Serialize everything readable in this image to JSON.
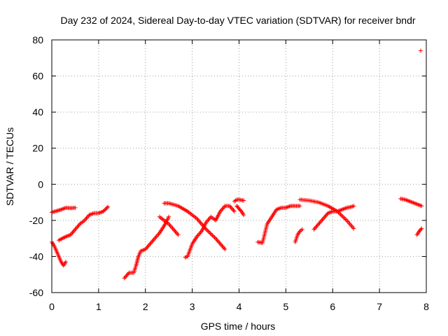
{
  "chart_data": {
    "type": "scatter",
    "title": "Day 232 of 2024, Sidereal Day-to-day VTEC variation (SDTVAR) for receiver bndr",
    "xlabel": "GPS time / hours",
    "ylabel": "SDTVAR / TECUs",
    "xlim": [
      0,
      8
    ],
    "ylim": [
      -60,
      80
    ],
    "x_ticks": [
      "0",
      "1",
      "2",
      "3",
      "4",
      "5",
      "6",
      "7",
      "8"
    ],
    "y_ticks": [
      "-60",
      "-40",
      "-20",
      "0",
      "20",
      "40",
      "60",
      "80"
    ],
    "grid": true,
    "marker": "+",
    "color": "#ff0000",
    "series": [
      {
        "name": "arc-1",
        "x": [
          0.0,
          0.1,
          0.2,
          0.3,
          0.4,
          0.5
        ],
        "y": [
          -15.5,
          -14.8,
          -14,
          -13,
          -13.2,
          -13
        ]
      },
      {
        "name": "arc-2",
        "x": [
          0.0,
          0.05,
          0.1,
          0.15,
          0.2,
          0.25,
          0.3
        ],
        "y": [
          -32,
          -34,
          -37,
          -40,
          -43,
          -45,
          -43
        ]
      },
      {
        "name": "arc-3",
        "x": [
          0.15,
          0.3,
          0.4,
          0.5,
          0.6,
          0.7,
          0.8,
          0.9,
          1.0,
          1.1,
          1.2
        ],
        "y": [
          -31,
          -29,
          -28,
          -25,
          -22,
          -20,
          -17,
          -16,
          -16,
          -15,
          -12.5
        ]
      },
      {
        "name": "arc-4",
        "x": [
          1.55,
          1.65,
          1.75,
          1.8,
          1.85,
          1.9,
          2.0,
          2.1,
          2.2,
          2.3,
          2.4,
          2.5
        ],
        "y": [
          -52,
          -49,
          -49,
          -45,
          -40,
          -37,
          -36,
          -33,
          -30,
          -27,
          -23,
          -18
        ]
      },
      {
        "name": "arc-5",
        "x": [
          2.3,
          2.4,
          2.5,
          2.6,
          2.7
        ],
        "y": [
          -18,
          -20,
          -22,
          -25,
          -28
        ]
      },
      {
        "name": "arc-6",
        "x": [
          2.4,
          2.5,
          2.7,
          2.9,
          3.1,
          3.3,
          3.5,
          3.7
        ],
        "y": [
          -10.5,
          -10.5,
          -12,
          -15,
          -19,
          -25,
          -30,
          -36
        ]
      },
      {
        "name": "arc-7",
        "x": [
          2.85,
          2.9,
          3.0,
          3.1,
          3.2,
          3.3,
          3.4,
          3.5,
          3.6,
          3.7,
          3.8,
          3.9
        ],
        "y": [
          -40.5,
          -40,
          -33,
          -29,
          -26,
          -21,
          -18,
          -20,
          -15,
          -12,
          -12,
          -15
        ]
      },
      {
        "name": "arc-8",
        "x": [
          3.9,
          3.95,
          4.0,
          4.1
        ],
        "y": [
          -9.5,
          -8.5,
          -8.5,
          -9
        ]
      },
      {
        "name": "arc-9",
        "x": [
          3.95,
          4.0,
          4.05,
          4.1
        ],
        "y": [
          -12,
          -13.5,
          -15,
          -17
        ]
      },
      {
        "name": "arc-10",
        "x": [
          4.4,
          4.5,
          4.6,
          4.7,
          4.8,
          4.9,
          5.0,
          5.1,
          5.2,
          5.3
        ],
        "y": [
          -32,
          -32.5,
          -22,
          -18,
          -14,
          -13,
          -13,
          -12,
          -12,
          -12
        ]
      },
      {
        "name": "arc-11",
        "x": [
          5.2,
          5.25,
          5.3,
          5.35
        ],
        "y": [
          -32,
          -28,
          -26,
          -25
        ]
      },
      {
        "name": "arc-12",
        "x": [
          5.3,
          5.5,
          5.7,
          5.9,
          6.1,
          6.3,
          6.45
        ],
        "y": [
          -8.5,
          -9,
          -10,
          -12,
          -15,
          -20,
          -24.5
        ]
      },
      {
        "name": "arc-13",
        "x": [
          5.6,
          5.7,
          5.8,
          5.9,
          6.0,
          6.1,
          6.2,
          6.3,
          6.4,
          6.45
        ],
        "y": [
          -25,
          -22,
          -19,
          -16,
          -15,
          -15,
          -14,
          -13,
          -12.5,
          -12
        ]
      },
      {
        "name": "arc-14",
        "x": [
          7.45,
          7.55,
          7.65,
          7.75,
          7.85,
          7.9
        ],
        "y": [
          -8,
          -8.5,
          -9.5,
          -10.5,
          -11.5,
          -12
        ]
      },
      {
        "name": "arc-15",
        "x": [
          7.8,
          7.85,
          7.9
        ],
        "y": [
          -28,
          -26,
          -24.5
        ]
      },
      {
        "name": "outlier",
        "x": [
          7.88
        ],
        "y": [
          74
        ]
      }
    ]
  }
}
